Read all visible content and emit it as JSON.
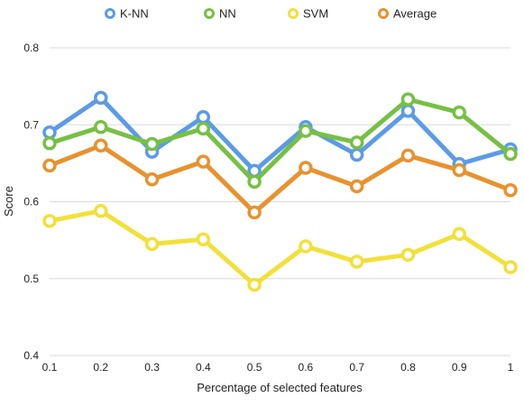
{
  "chart_data": {
    "type": "line",
    "title": "",
    "xlabel": "Percentage of selected features",
    "ylabel": "Score",
    "x": [
      0.1,
      0.2,
      0.3,
      0.4,
      0.5,
      0.6,
      0.7,
      0.8,
      0.9,
      1
    ],
    "x_tick_labels": [
      "0.1",
      "0.2",
      "0.3",
      "0.4",
      "0.5",
      "0.6",
      "0.7",
      "0.8",
      "0.9",
      "1"
    ],
    "ylim": [
      0.4,
      0.8
    ],
    "y_ticks": [
      0.4,
      0.5,
      0.6,
      0.7,
      0.8
    ],
    "y_tick_labels": [
      "0.4",
      "0.5",
      "0.6",
      "0.7",
      "0.8"
    ],
    "grid": "horizontal",
    "legend_position": "top",
    "series": [
      {
        "name": "K-NN",
        "color": "#5B9BE6",
        "values": [
          0.69,
          0.735,
          0.665,
          0.71,
          0.64,
          0.697,
          0.661,
          0.718,
          0.649,
          0.668
        ]
      },
      {
        "name": "NN",
        "color": "#76C043",
        "values": [
          0.676,
          0.697,
          0.675,
          0.695,
          0.626,
          0.692,
          0.677,
          0.733,
          0.716,
          0.662
        ]
      },
      {
        "name": "SVM",
        "color": "#F2E03A",
        "values": [
          0.575,
          0.588,
          0.545,
          0.551,
          0.492,
          0.542,
          0.522,
          0.531,
          0.558,
          0.515
        ]
      },
      {
        "name": "Average",
        "color": "#E8922E",
        "values": [
          0.647,
          0.673,
          0.629,
          0.652,
          0.586,
          0.644,
          0.62,
          0.66,
          0.641,
          0.615
        ]
      }
    ]
  }
}
